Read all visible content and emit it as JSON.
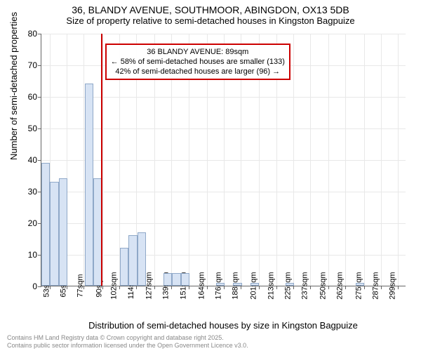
{
  "title": {
    "line1": "36, BLANDY AVENUE, SOUTHMOOR, ABINGDON, OX13 5DB",
    "line2": "Size of property relative to semi-detached houses in Kingston Bagpuize"
  },
  "ylabel": "Number of semi-detached properties",
  "xlabel": "Distribution of semi-detached houses by size in Kingston Bagpuize",
  "footer": {
    "line1": "Contains HM Land Registry data © Crown copyright and database right 2025.",
    "line2": "Contains public sector information licensed under the Open Government Licence v3.0."
  },
  "annotation": {
    "line1": "36 BLANDY AVENUE: 89sqm",
    "line2": "← 58% of semi-detached houses are smaller (133)",
    "line3": "42% of semi-detached houses are larger (96) →"
  },
  "chart": {
    "type": "histogram",
    "ylim": [
      0,
      80
    ],
    "ytick_step": 10,
    "xlim": [
      47,
      305
    ],
    "x_ticks": [
      53,
      65,
      77,
      90,
      102,
      114,
      127,
      139,
      151,
      164,
      176,
      188,
      201,
      213,
      225,
      237,
      250,
      262,
      275,
      287,
      299
    ],
    "x_tick_suffix": "sqm",
    "bin_width": 6.2,
    "marker_x": 89,
    "bar_fill": "#d7e3f4",
    "bar_stroke": "#8fa8c8",
    "marker_color": "#cc0000",
    "grid_color": "#e8e8e8",
    "background": "#ffffff",
    "bars": [
      {
        "x": 53,
        "y": 39
      },
      {
        "x": 59.2,
        "y": 33
      },
      {
        "x": 65.4,
        "y": 34
      },
      {
        "x": 83.8,
        "y": 64
      },
      {
        "x": 90,
        "y": 34
      },
      {
        "x": 108.6,
        "y": 12
      },
      {
        "x": 114.8,
        "y": 16
      },
      {
        "x": 121,
        "y": 17
      },
      {
        "x": 139.4,
        "y": 4
      },
      {
        "x": 145.6,
        "y": 4
      },
      {
        "x": 151.8,
        "y": 4
      },
      {
        "x": 176.6,
        "y": 1
      },
      {
        "x": 188.8,
        "y": 1
      },
      {
        "x": 201,
        "y": 1
      },
      {
        "x": 225.8,
        "y": 1
      },
      {
        "x": 275.4,
        "y": 1
      }
    ]
  }
}
